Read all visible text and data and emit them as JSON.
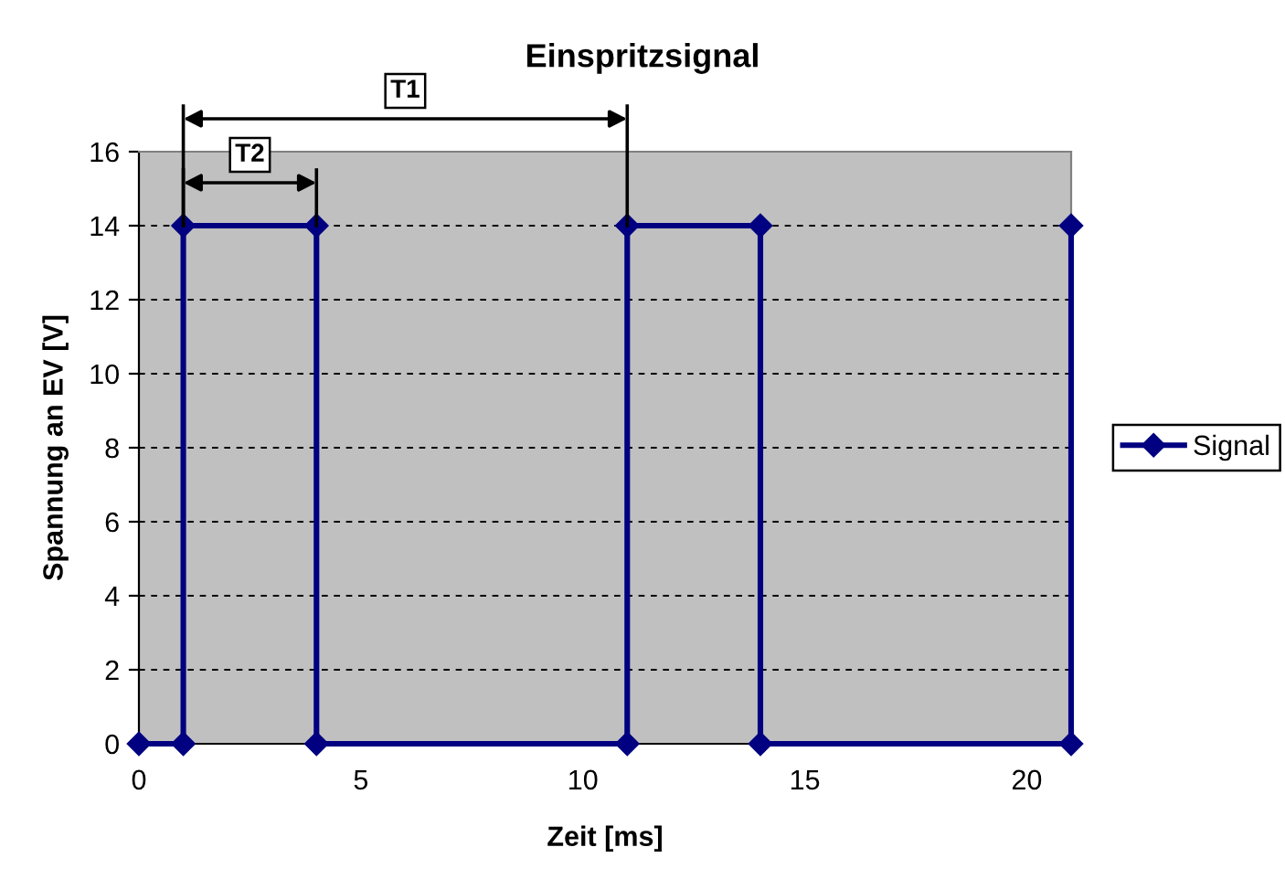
{
  "chart_data": {
    "type": "line",
    "title": "Einspritzsignal",
    "xlabel": "Zeit [ms]",
    "ylabel": "Spannung an EV [V]",
    "x": [
      0,
      1,
      1,
      4,
      4,
      11,
      11,
      14,
      14,
      21,
      21
    ],
    "series": [
      {
        "name": "Signal",
        "color": "#000080",
        "values": [
          0,
          0,
          14,
          14,
          0,
          0,
          14,
          14,
          0,
          0,
          14
        ]
      }
    ],
    "xlim": [
      0,
      21
    ],
    "xticks": [
      0,
      5,
      10,
      15,
      20
    ],
    "ylim": [
      0,
      16
    ],
    "yticks": [
      0,
      2,
      4,
      6,
      8,
      10,
      12,
      14,
      16
    ],
    "grid": "y",
    "legend": "right",
    "marker": "diamond",
    "line_style": "solid",
    "annotations": [
      "T1",
      "T2"
    ]
  }
}
